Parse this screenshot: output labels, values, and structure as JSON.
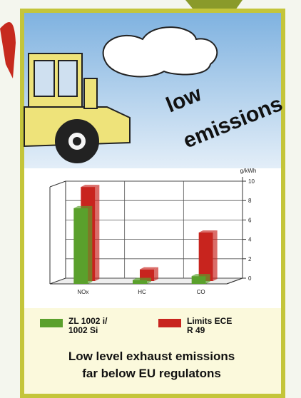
{
  "illustration": {
    "word1": "low",
    "word2": "emissions"
  },
  "chart_data": {
    "type": "bar",
    "ylabel": "g/kWh",
    "categories": [
      "NOx",
      "HC",
      "CO"
    ],
    "series": [
      {
        "name": "ZL 1002 i/ 1002 Si",
        "color": "#5aa02c",
        "values": [
          7.8,
          0.4,
          0.8
        ]
      },
      {
        "name": "Limits ECE R 49",
        "color": "#c8241e",
        "values": [
          9.7,
          1.2,
          5.0
        ]
      }
    ],
    "ylim": [
      0,
      10
    ],
    "yticks": [
      0,
      2,
      4,
      6,
      8,
      10
    ],
    "grid": true
  },
  "caption": [
    "Low level exhaust emissions",
    "far below EU regulatons"
  ]
}
